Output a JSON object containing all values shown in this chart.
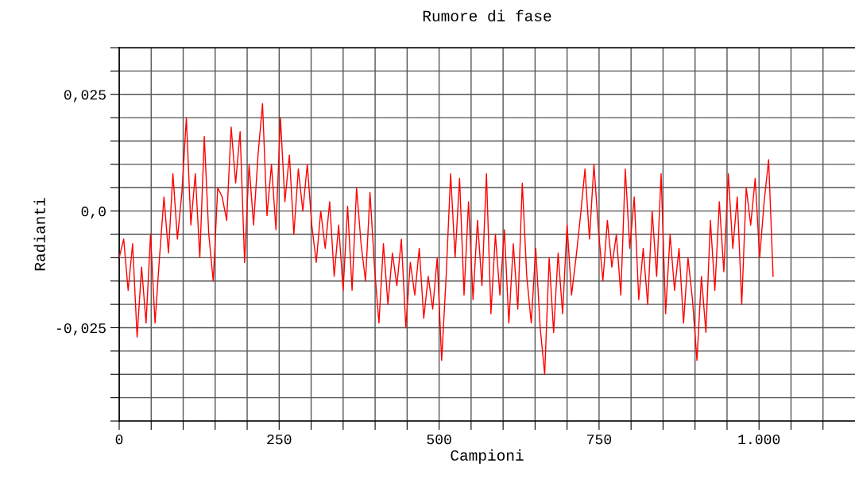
{
  "chart_data": {
    "type": "line",
    "title": "Rumore di fase",
    "xlabel": "Campioni",
    "ylabel": "Radianti",
    "x": [
      0,
      7,
      14,
      21,
      28,
      35,
      42,
      49,
      56,
      63,
      70,
      77,
      84,
      91,
      98,
      105,
      112,
      119,
      126,
      133,
      140,
      147,
      154,
      161,
      168,
      175,
      182,
      189,
      196,
      203,
      210,
      217,
      224,
      231,
      238,
      245,
      252,
      259,
      266,
      273,
      280,
      287,
      294,
      301,
      308,
      315,
      322,
      329,
      336,
      343,
      350,
      357,
      364,
      371,
      378,
      385,
      392,
      399,
      406,
      413,
      420,
      427,
      434,
      441,
      448,
      455,
      462,
      469,
      476,
      483,
      490,
      497,
      504,
      511,
      518,
      525,
      532,
      539,
      546,
      553,
      560,
      567,
      574,
      581,
      588,
      595,
      602,
      609,
      616,
      623,
      630,
      637,
      644,
      651,
      658,
      665,
      672,
      679,
      686,
      693,
      700,
      707,
      714,
      721,
      728,
      735,
      742,
      749,
      756,
      763,
      770,
      777,
      784,
      791,
      798,
      805,
      812,
      819,
      826,
      833,
      840,
      847,
      854,
      861,
      868,
      875,
      882,
      889,
      896,
      903,
      910,
      917,
      924,
      931,
      938,
      945,
      952,
      959,
      966,
      973,
      980,
      987,
      994,
      1001,
      1008,
      1015,
      1022
    ],
    "series": [
      {
        "color": "#ff0000",
        "values": [
          -0.01,
          -0.006,
          -0.017,
          -0.007,
          -0.027,
          -0.012,
          -0.024,
          -0.005,
          -0.024,
          -0.01,
          0.003,
          -0.009,
          0.008,
          -0.006,
          0.004,
          0.02,
          -0.003,
          0.008,
          -0.01,
          0.016,
          -0.005,
          -0.015,
          0.005,
          0.003,
          -0.002,
          0.018,
          0.006,
          0.017,
          -0.011,
          0.01,
          -0.003,
          0.012,
          0.023,
          -0.001,
          0.01,
          -0.004,
          0.02,
          0.002,
          0.012,
          -0.005,
          0.009,
          0.0,
          0.01,
          -0.003,
          -0.011,
          0.0,
          -0.008,
          0.002,
          -0.014,
          -0.003,
          -0.017,
          0.001,
          -0.017,
          0.005,
          -0.007,
          -0.015,
          0.004,
          -0.012,
          -0.024,
          -0.007,
          -0.02,
          -0.009,
          -0.016,
          -0.006,
          -0.025,
          -0.011,
          -0.018,
          -0.008,
          -0.023,
          -0.014,
          -0.021,
          -0.01,
          -0.032,
          -0.014,
          0.008,
          -0.01,
          0.007,
          -0.018,
          0.002,
          -0.019,
          -0.002,
          -0.016,
          0.008,
          -0.022,
          -0.005,
          -0.018,
          -0.004,
          -0.024,
          -0.007,
          -0.021,
          0.006,
          -0.014,
          -0.024,
          -0.008,
          -0.025,
          -0.035,
          -0.01,
          -0.026,
          -0.009,
          -0.022,
          -0.003,
          -0.018,
          -0.01,
          -0.001,
          0.009,
          -0.006,
          0.01,
          -0.004,
          -0.015,
          -0.002,
          -0.012,
          -0.005,
          -0.018,
          0.009,
          -0.008,
          0.003,
          -0.019,
          -0.008,
          -0.02,
          0.0,
          -0.014,
          0.008,
          -0.022,
          -0.005,
          -0.017,
          -0.008,
          -0.024,
          -0.01,
          -0.019,
          -0.032,
          -0.014,
          -0.026,
          -0.002,
          -0.017,
          0.002,
          -0.013,
          0.008,
          -0.008,
          0.003,
          -0.02,
          0.005,
          -0.003,
          0.007,
          -0.01,
          0.002,
          0.011,
          -0.014
        ]
      }
    ],
    "xlim": [
      0,
      1150
    ],
    "xticks": [
      0,
      {
        "value": 50,
        "label": null
      },
      {
        "value": 100,
        "label": null
      },
      {
        "value": 150,
        "label": null
      },
      {
        "value": 200,
        "label": null
      },
      250,
      {
        "value": 300,
        "label": null
      },
      {
        "value": 350,
        "label": null
      },
      {
        "value": 400,
        "label": null
      },
      {
        "value": 450,
        "label": null
      },
      500,
      {
        "value": 550,
        "label": null
      },
      {
        "value": 600,
        "label": null
      },
      {
        "value": 650,
        "label": null
      },
      {
        "value": 700,
        "label": null
      },
      750,
      {
        "value": 800,
        "label": null
      },
      {
        "value": 850,
        "label": null
      },
      {
        "value": 900,
        "label": null
      },
      {
        "value": 950,
        "label": null
      },
      {
        "value": 1000,
        "label": "1.000"
      },
      {
        "value": 1050,
        "label": null
      },
      {
        "value": 1100,
        "label": null
      }
    ],
    "ylim": [
      -0.045,
      0.035
    ],
    "yticks": [
      {
        "value": -0.045,
        "label": null
      },
      {
        "value": -0.04,
        "label": null
      },
      {
        "value": -0.035,
        "label": null
      },
      {
        "value": -0.03,
        "label": null
      },
      {
        "value": -0.025,
        "label": "-0,025"
      },
      {
        "value": -0.02,
        "label": null
      },
      {
        "value": -0.015,
        "label": null
      },
      {
        "value": -0.01,
        "label": null
      },
      {
        "value": -0.005,
        "label": null
      },
      {
        "value": 0,
        "label": "0,0"
      },
      {
        "value": 0.005,
        "label": null
      },
      {
        "value": 0.01,
        "label": null
      },
      {
        "value": 0.015,
        "label": null
      },
      {
        "value": 0.02,
        "label": null
      },
      {
        "value": 0.025,
        "label": "0,025"
      },
      {
        "value": 0.03,
        "label": null
      },
      {
        "value": 0.035,
        "label": null
      }
    ],
    "grid": true,
    "marker": "none",
    "line_style": "solid"
  }
}
